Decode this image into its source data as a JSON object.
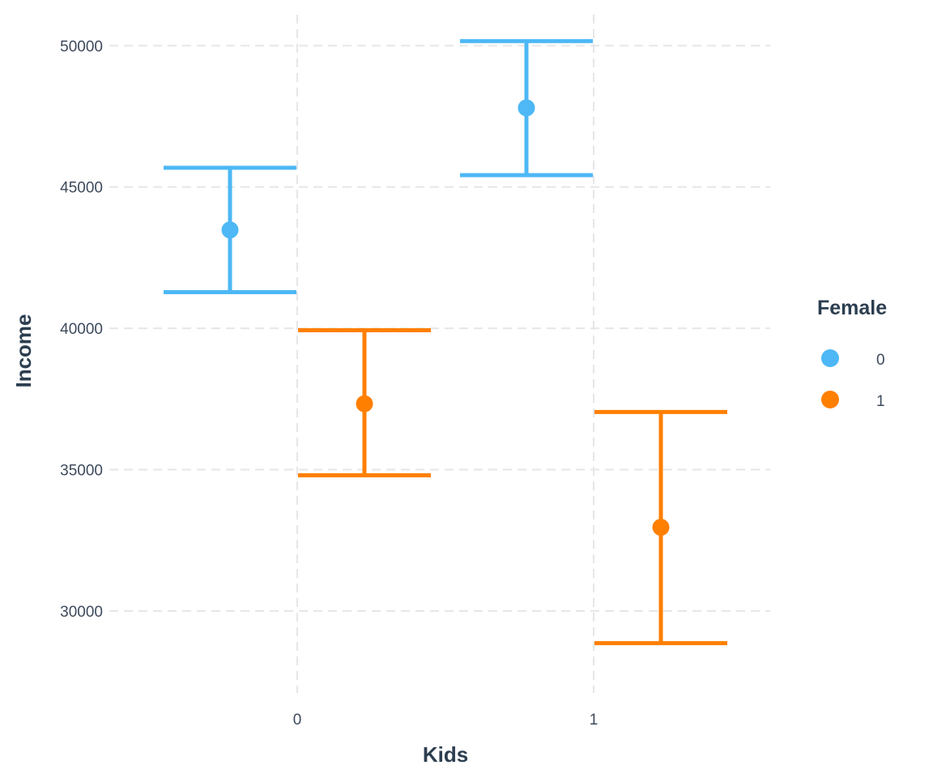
{
  "chart_data": {
    "type": "errorbar",
    "xlabel": "Kids",
    "ylabel": "Income",
    "categories": [
      "0",
      "1"
    ],
    "y_ticks": [
      30000,
      35000,
      40000,
      45000,
      50000
    ],
    "ylim": [
      27100,
      51100
    ],
    "grid": true,
    "legend": {
      "title": "Female",
      "placement": "right"
    },
    "series": [
      {
        "name": "0",
        "color": "#4db8f5",
        "points": [
          {
            "x": "0",
            "y": 43480,
            "ymin": 41280,
            "ymax": 45680
          },
          {
            "x": "1",
            "y": 47800,
            "ymin": 45420,
            "ymax": 50160
          }
        ]
      },
      {
        "name": "1",
        "color": "#ff7f00",
        "points": [
          {
            "x": "0",
            "y": 37330,
            "ymin": 34800,
            "ymax": 39930
          },
          {
            "x": "1",
            "y": 32960,
            "ymin": 28860,
            "ymax": 37040
          }
        ]
      }
    ]
  }
}
